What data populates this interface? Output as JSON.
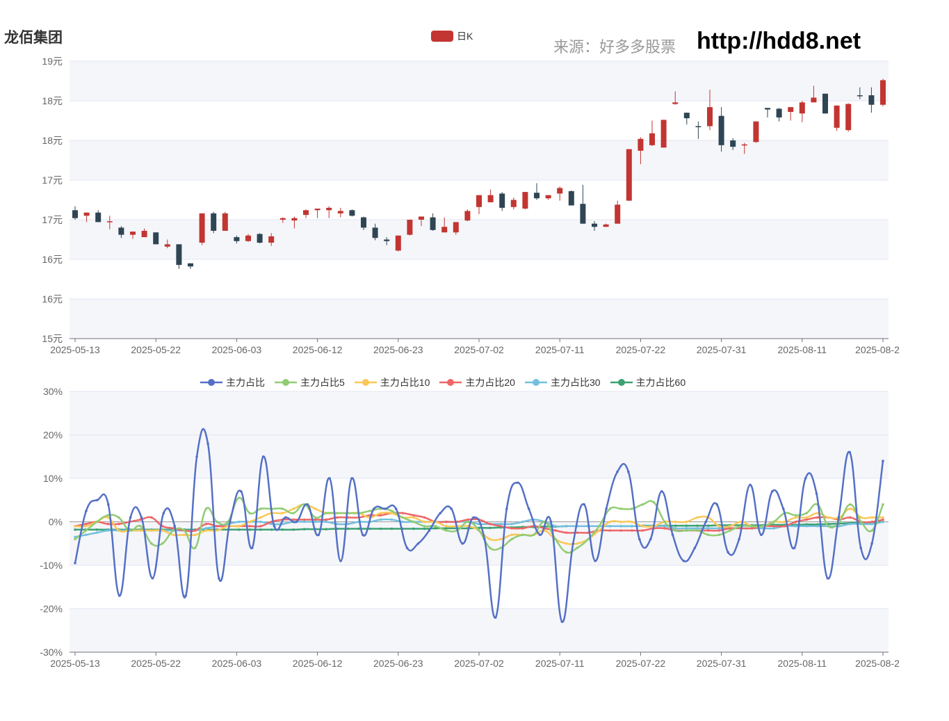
{
  "header": {
    "stock_name": "龙佰集团",
    "source_text": "来源：好多多股票",
    "site_url": "http://hdd8.net"
  },
  "colors": {
    "up": "#c23531",
    "down": "#2f4554",
    "grid": "#e0e6f1",
    "band": "#f5f6fa",
    "axis": "#6e7079"
  },
  "chart_data": [
    {
      "type": "candlestick",
      "legend": [
        "日K"
      ],
      "x_tick_labels": [
        "2025-05-13",
        "2025-05-22",
        "2025-06-03",
        "2025-06-12",
        "2025-06-23",
        "2025-07-02",
        "2025-07-11",
        "2025-07-22",
        "2025-07-31",
        "2025-08-11",
        "2025-08-2"
      ],
      "y_tick_labels": [
        "15元",
        "16元",
        "16元",
        "17元",
        "17元",
        "18元",
        "18元",
        "19元"
      ],
      "ylim": [
        15,
        18.5
      ],
      "series": [
        {
          "name": "日K",
          "ohlc": [
            [
              16.62,
              16.52,
              16.67,
              16.5
            ],
            [
              16.55,
              16.59,
              16.59,
              16.47
            ],
            [
              16.59,
              16.47,
              16.62,
              16.47
            ],
            [
              16.48,
              16.48,
              16.55,
              16.38
            ],
            [
              16.4,
              16.31,
              16.42,
              16.27
            ],
            [
              16.31,
              16.35,
              16.35,
              16.26
            ],
            [
              16.28,
              16.36,
              16.39,
              16.28
            ],
            [
              16.34,
              16.19,
              16.34,
              16.19
            ],
            [
              16.16,
              16.19,
              16.25,
              16.14
            ],
            [
              16.19,
              15.93,
              16.19,
              15.88
            ],
            [
              15.95,
              15.91,
              15.95,
              15.88
            ],
            [
              16.21,
              16.58,
              16.21,
              16.18
            ],
            [
              16.58,
              16.36,
              16.6,
              16.33
            ],
            [
              16.36,
              16.58,
              16.6,
              16.36
            ],
            [
              16.28,
              16.23,
              16.3,
              16.2
            ],
            [
              16.23,
              16.3,
              16.32,
              16.22
            ],
            [
              16.32,
              16.21,
              16.33,
              16.2
            ],
            [
              16.21,
              16.29,
              16.33,
              16.17
            ],
            [
              16.5,
              16.52,
              16.53,
              16.46
            ],
            [
              16.49,
              16.52,
              16.54,
              16.39
            ],
            [
              16.56,
              16.62,
              16.63,
              16.52
            ],
            [
              16.62,
              16.64,
              16.64,
              16.52
            ],
            [
              16.62,
              16.65,
              16.67,
              16.52
            ],
            [
              16.58,
              16.61,
              16.65,
              16.53
            ],
            [
              16.62,
              16.55,
              16.63,
              16.54
            ],
            [
              16.53,
              16.4,
              16.54,
              16.37
            ],
            [
              16.4,
              16.27,
              16.45,
              16.24
            ],
            [
              16.25,
              16.23,
              16.28,
              16.18
            ],
            [
              16.11,
              16.3,
              16.3,
              16.1
            ],
            [
              16.31,
              16.5,
              16.5,
              16.3
            ],
            [
              16.5,
              16.54,
              16.54,
              16.42
            ],
            [
              16.53,
              16.37,
              16.58,
              16.36
            ],
            [
              16.34,
              16.41,
              16.53,
              16.34
            ],
            [
              16.34,
              16.47,
              16.47,
              16.31
            ],
            [
              16.49,
              16.61,
              16.63,
              16.48
            ],
            [
              16.66,
              16.81,
              16.81,
              16.57
            ],
            [
              16.72,
              16.81,
              16.88,
              16.72
            ],
            [
              16.83,
              16.65,
              16.85,
              16.61
            ],
            [
              16.66,
              16.75,
              16.78,
              16.63
            ],
            [
              16.64,
              16.85,
              16.85,
              16.63
            ],
            [
              16.84,
              16.77,
              16.96,
              16.75
            ],
            [
              16.77,
              16.81,
              16.81,
              16.75
            ],
            [
              16.83,
              16.9,
              16.92,
              16.74
            ],
            [
              16.86,
              16.68,
              16.87,
              16.68
            ],
            [
              16.7,
              16.45,
              16.94,
              16.45
            ],
            [
              16.45,
              16.41,
              16.48,
              16.36
            ],
            [
              16.41,
              16.44,
              16.45,
              16.41
            ],
            [
              16.45,
              16.69,
              16.74,
              16.45
            ],
            [
              16.74,
              17.39,
              17.39,
              16.74
            ],
            [
              17.37,
              17.52,
              17.54,
              17.2
            ],
            [
              17.44,
              17.59,
              17.75,
              17.43
            ],
            [
              17.41,
              17.76,
              17.76,
              17.41
            ],
            [
              17.96,
              17.98,
              18.12,
              17.95
            ],
            [
              17.85,
              17.78,
              17.85,
              17.7
            ],
            [
              17.68,
              17.67,
              17.74,
              17.52
            ],
            [
              17.68,
              17.92,
              18.14,
              17.63
            ],
            [
              17.81,
              17.44,
              17.92,
              17.36
            ],
            [
              17.5,
              17.42,
              17.53,
              17.38
            ],
            [
              17.44,
              17.45,
              17.47,
              17.33
            ],
            [
              17.48,
              17.74,
              17.74,
              17.47
            ],
            [
              17.91,
              17.89,
              17.91,
              17.79
            ],
            [
              17.9,
              17.79,
              17.91,
              17.74
            ],
            [
              17.86,
              17.92,
              17.92,
              17.75
            ],
            [
              17.84,
              17.98,
              18.0,
              17.73
            ],
            [
              17.98,
              18.04,
              18.19,
              17.99
            ],
            [
              18.09,
              17.84,
              18.09,
              17.84
            ],
            [
              17.66,
              17.94,
              17.94,
              17.62
            ],
            [
              17.63,
              17.96,
              17.97,
              17.61
            ],
            [
              18.07,
              18.06,
              18.17,
              18.02
            ],
            [
              18.07,
              17.95,
              18.17,
              17.85
            ],
            [
              17.95,
              18.26,
              18.28,
              17.93
            ]
          ]
        }
      ]
    },
    {
      "type": "line",
      "legend": [
        "主力占比",
        "主力占比5",
        "主力占比10",
        "主力占比20",
        "主力占比30",
        "主力占比60"
      ],
      "x_tick_labels": [
        "2025-05-13",
        "2025-05-22",
        "2025-06-03",
        "2025-06-12",
        "2025-06-23",
        "2025-07-02",
        "2025-07-11",
        "2025-07-22",
        "2025-07-31",
        "2025-08-11",
        "2025-08-2"
      ],
      "y_tick_labels": [
        "-30%",
        "-20%",
        "-10%",
        "0%",
        "10%",
        "20%",
        "30%"
      ],
      "ylim": [
        -30,
        30
      ],
      "series": [
        {
          "name": "主力占比",
          "color": "#5470c6",
          "values": [
            -9.5,
            2.5,
            5,
            4,
            -17,
            1,
            1,
            -13,
            2,
            -1,
            -17,
            15,
            18,
            -13,
            0,
            7,
            -6,
            15,
            -1,
            1,
            0,
            4,
            -3,
            10,
            -9,
            10,
            -3,
            3,
            3,
            3,
            -6,
            -5,
            -2,
            2,
            3,
            -5,
            1,
            -4,
            -22,
            3,
            9,
            3,
            -3,
            0,
            -23,
            -5,
            4,
            -9,
            3,
            11.5,
            11.5,
            -4,
            -4,
            7,
            -3,
            -9,
            -6,
            0,
            4,
            -7,
            -4,
            8.5,
            -3,
            7,
            3,
            -6,
            10,
            6.5,
            -13,
            1,
            16,
            -6,
            -5,
            14
          ]
        },
        {
          "name": "主力占比5",
          "color": "#91cc75",
          "values": [
            -4,
            -2,
            0,
            1.5,
            1,
            -2,
            -1,
            -5,
            -5,
            -2,
            -2,
            -6,
            3,
            0,
            0,
            5.5,
            2,
            3,
            3,
            3,
            2,
            4,
            1,
            2,
            2,
            2,
            2,
            2.5,
            3,
            2.5,
            1,
            0,
            -1,
            -1,
            -2,
            -2,
            0,
            -2,
            -6,
            -6,
            -4,
            -3,
            -3,
            0,
            -4,
            -7,
            -6,
            -4,
            -1,
            3,
            3,
            3,
            4,
            4.5,
            0,
            -2,
            -2,
            -2,
            -3,
            -3,
            -2,
            -1,
            -1,
            -1,
            0,
            2,
            1.5,
            2,
            4,
            -1,
            0,
            4,
            0,
            -2,
            4
          ]
        },
        {
          "name": "主力占比10",
          "color": "#fac858",
          "values": [
            -1,
            -1,
            0,
            1,
            -2,
            -2,
            -2,
            -2,
            -2,
            -3,
            -3,
            -3,
            -2,
            -2,
            -1,
            -1,
            0,
            1,
            2,
            2,
            3,
            4,
            3,
            2,
            2,
            2,
            2,
            1,
            2,
            2,
            1,
            1,
            0,
            0,
            -1,
            -1,
            -1,
            -2,
            -4,
            -4,
            -3,
            -3,
            -3,
            -2,
            -4,
            -5,
            -5,
            -4,
            -2,
            0,
            0,
            0,
            -1,
            -1,
            0,
            0,
            0,
            1,
            1,
            -1,
            -1,
            0,
            -1,
            -1,
            0,
            0,
            1,
            1,
            2,
            1,
            1,
            3,
            1,
            1,
            1
          ]
        },
        {
          "name": "主力占比20",
          "color": "#ee6666",
          "values": [
            -1,
            -0.5,
            0,
            -0.5,
            -0.5,
            0,
            0.5,
            1,
            -1,
            -1.5,
            -2,
            -2,
            -0.5,
            -1,
            -1,
            -1,
            -1,
            -1,
            0,
            0.5,
            0.5,
            0.5,
            0.5,
            0.5,
            1,
            1,
            1,
            1.5,
            1.5,
            2,
            2,
            1.5,
            1,
            0,
            0,
            0,
            0.5,
            0.5,
            -0.5,
            -1,
            -1.5,
            -1.5,
            -1,
            -1.5,
            -2,
            -2.5,
            -2.5,
            -2.5,
            -2,
            -2,
            -2,
            -2,
            -2,
            -1.5,
            -1.5,
            -2,
            -2,
            -2,
            -2,
            -2,
            -1.5,
            -1.5,
            -1.5,
            -1,
            -1,
            -1,
            0,
            0.5,
            1,
            1,
            0.5,
            1,
            0,
            0,
            0.5
          ]
        },
        {
          "name": "主力占比30",
          "color": "#73c0de",
          "values": [
            -3.5,
            -3,
            -2.5,
            -2,
            -2,
            -2,
            -2,
            -2,
            -2,
            -2,
            -2,
            -2,
            -1.5,
            -1,
            -0.5,
            0,
            0,
            0,
            -0.5,
            -0.5,
            0,
            0,
            0,
            0,
            -0.5,
            -0.5,
            0,
            0,
            0.5,
            0.5,
            0,
            0,
            0,
            0,
            0,
            0,
            0,
            -0.5,
            -0.5,
            -0.5,
            -0.5,
            0,
            0.5,
            0,
            -1,
            -1,
            -1,
            -1,
            -1,
            -1,
            -1,
            -1,
            -1,
            -1,
            -1,
            -1.5,
            -1.5,
            -1.5,
            -1.5,
            -1.5,
            -1.5,
            -1.5,
            -1.5,
            -1.5,
            -1.5,
            -1,
            -1,
            -1,
            -1,
            -1,
            -1,
            -0.5,
            -0.5,
            -0.5,
            0
          ]
        },
        {
          "name": "主力占比60",
          "color": "#3ba272",
          "values": [
            -1.8,
            -1.8,
            -1.8,
            -1.8,
            -1.8,
            -1.8,
            -1.8,
            -1.8,
            -1.8,
            -1.8,
            -1.8,
            -1.8,
            -1.8,
            -1.8,
            -1.8,
            -1.8,
            -1.8,
            -1.8,
            -1.8,
            -1.8,
            -1.8,
            -1.7,
            -1.7,
            -1.7,
            -1.6,
            -1.6,
            -1.6,
            -1.6,
            -1.6,
            -1.6,
            -1.6,
            -1.6,
            -1.6,
            -1.5,
            -1.5,
            -1.5,
            -1.5,
            -1.4,
            -1.4,
            -1.3,
            -1.3,
            -1.2,
            -1.2,
            -1.1,
            -1.1,
            -1,
            -1,
            -1,
            -1,
            -1,
            -1,
            -1,
            -0.9,
            -0.9,
            -0.9,
            -0.9,
            -0.9,
            -0.9,
            -0.9,
            -0.8,
            -0.8,
            -0.8,
            -0.8,
            -0.8,
            -0.7,
            -0.7,
            -0.7,
            -0.6,
            -0.6,
            -0.5,
            -0.4,
            -0.3,
            -0.2,
            -0.1,
            0
          ]
        }
      ]
    }
  ]
}
